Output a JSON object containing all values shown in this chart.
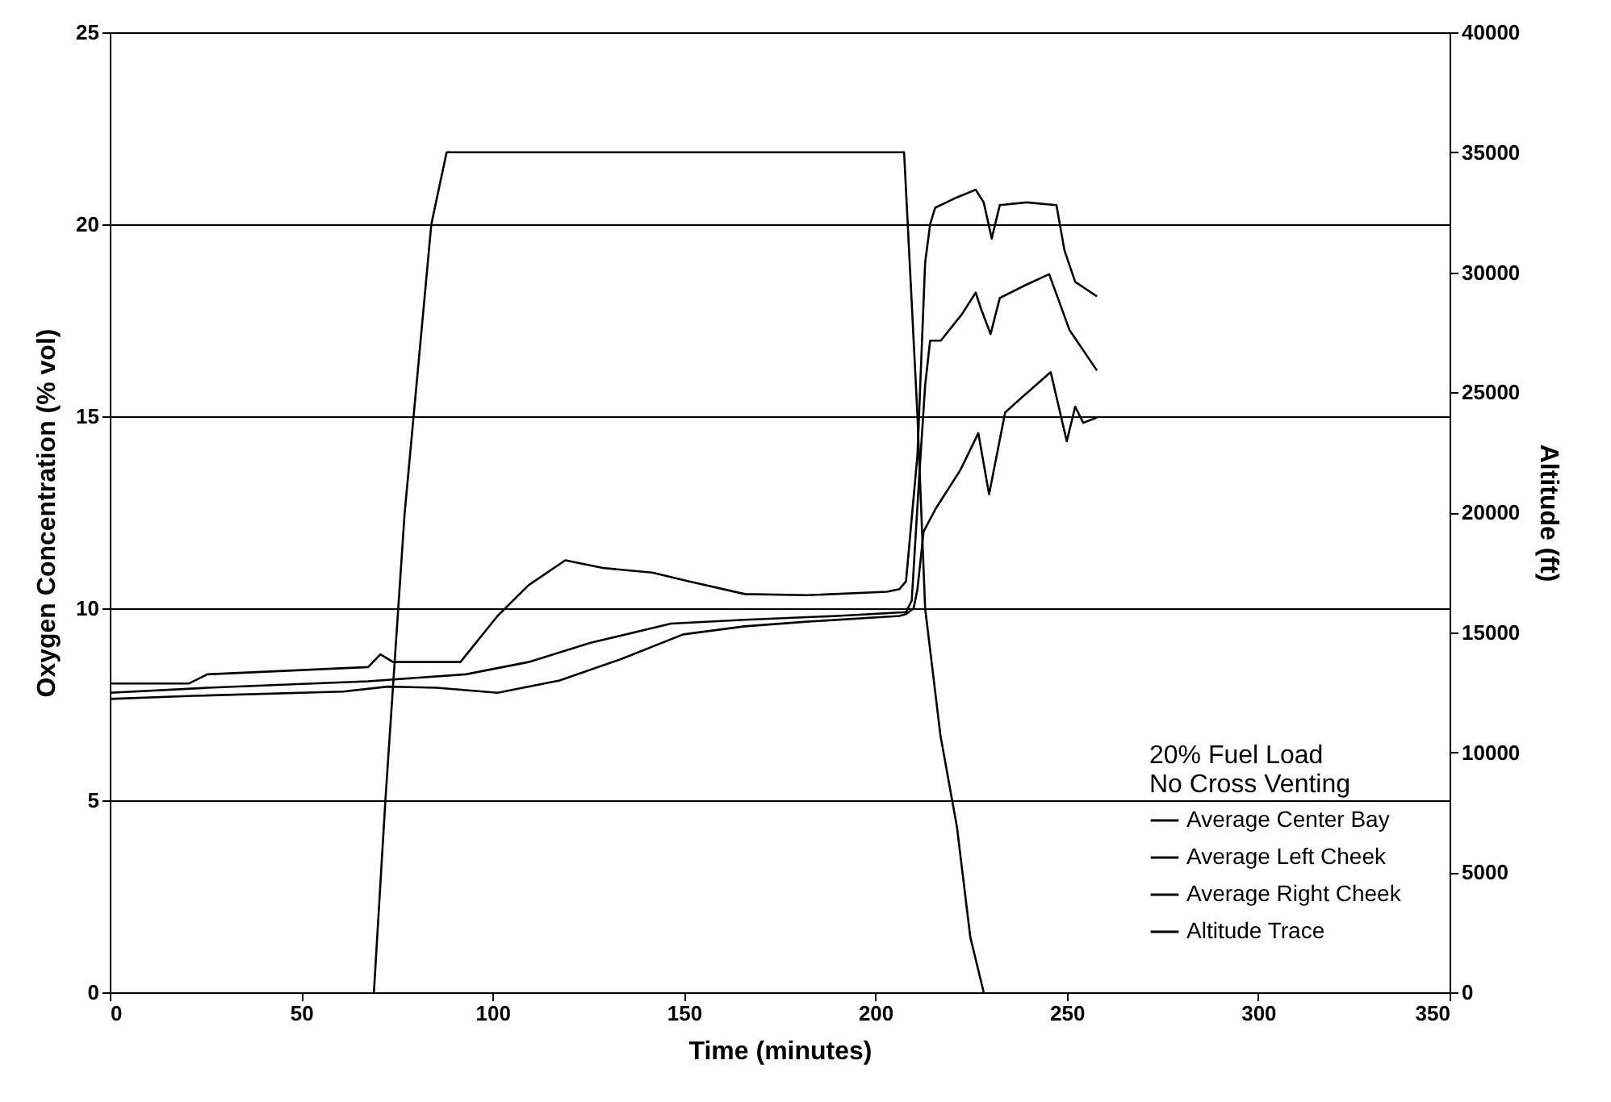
{
  "chart_data": {
    "type": "line",
    "xlabel": "Time (minutes)",
    "ylabel": "Oxygen Concentration (% vol)",
    "y2label": "Altitude (ft)",
    "legend_title": "20% Fuel Load\nNo Cross Venting",
    "legend": "bottom right",
    "grid": "y",
    "xlim": [
      0,
      350
    ],
    "xticks": [
      0,
      50,
      100,
      150,
      200,
      250,
      300,
      350
    ],
    "ylim": [
      0,
      25
    ],
    "yticks": [
      0,
      5,
      10,
      15,
      20,
      25
    ],
    "y2lim": [
      0,
      40000
    ],
    "y2ticks": [
      0,
      5000,
      10000,
      15000,
      20000,
      25000,
      30000,
      35000,
      40000
    ],
    "series": [
      {
        "name": "Average Center Bay",
        "color": "#000000",
        "x": [
          0,
          25.5,
          67.5,
          93,
          109.4,
          125.6,
          146.6,
          165.9,
          190,
          208,
          209.5,
          211.5,
          213,
          214.3,
          217.1,
          222.7,
          226.2,
          227.6,
          230.1,
          232.5,
          239.5,
          245.4,
          250.7,
          257.9
        ],
        "values": [
          7.8,
          7.93,
          8.1,
          8.28,
          8.6,
          9.1,
          9.6,
          9.7,
          9.8,
          9.9,
          10.2,
          13.5,
          15.8,
          16.97,
          16.97,
          17.67,
          18.22,
          17.8,
          17.14,
          18.08,
          18.43,
          18.7,
          17.25,
          16.19
        ]
      },
      {
        "name": "Average Left Cheek",
        "color": "#000000",
        "x": [
          0,
          20.6,
          25.5,
          67.5,
          70.7,
          74,
          91.6,
          101.3,
          109.4,
          119,
          128.8,
          141.7,
          151.4,
          165.9,
          182,
          203,
          206.3,
          208,
          211,
          213,
          214.3,
          215.6,
          221.3,
          226.2,
          228.3,
          230.4,
          232.5,
          239.5,
          247.3,
          249.4,
          252.2,
          257.9
        ],
        "values": [
          8.04,
          8.04,
          8.28,
          8.47,
          8.8,
          8.6,
          8.6,
          9.8,
          10.6,
          11.25,
          11.05,
          10.93,
          10.7,
          10.37,
          10.34,
          10.43,
          10.5,
          10.7,
          14,
          19,
          20,
          20.43,
          20.7,
          20.9,
          20.57,
          19.63,
          20.5,
          20.57,
          20.5,
          19.32,
          18.5,
          18.12
        ]
      },
      {
        "name": "Average Right Cheek",
        "color": "#000000",
        "x": [
          0,
          22,
          61,
          72.5,
          85.4,
          101.3,
          117.5,
          133.7,
          149.8,
          165.9,
          182,
          206.3,
          208,
          210,
          211,
          212.6,
          215.8,
          222.2,
          226.9,
          229.7,
          233.9,
          239.5,
          245.8,
          250,
          252.2,
          254.3,
          257.9
        ],
        "values": [
          7.64,
          7.72,
          7.83,
          7.96,
          7.93,
          7.8,
          8.12,
          8.68,
          9.32,
          9.53,
          9.65,
          9.8,
          9.85,
          10,
          10.5,
          12,
          12.6,
          13.6,
          14.56,
          12.97,
          15.1,
          15.6,
          16.15,
          14.35,
          15.25,
          14.83,
          14.97
        ]
      },
      {
        "name": "Altitude Trace",
        "color": "#000000",
        "axis": "y2",
        "x": [
          69,
          72,
          77,
          84,
          88,
          207.5,
          211,
          213,
          217,
          221.3,
          224.8,
          228.3
        ],
        "values": [
          0,
          8000,
          19900,
          32000,
          35000,
          35000,
          24000,
          16000,
          10700,
          6900,
          2300,
          0
        ]
      }
    ]
  }
}
